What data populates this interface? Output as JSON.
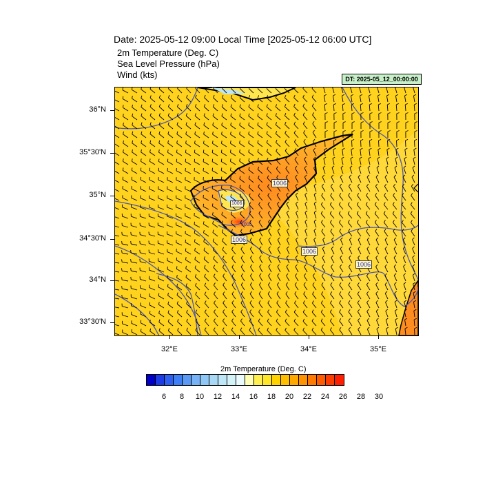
{
  "title": {
    "main": "Date: 2025-05-12  09:00 Local Time [2025-05-12  06:00 UTC]",
    "line1": "2m Temperature (Deg. C)",
    "line2": "Sea Level Pressure   (hPa)",
    "line3": "Wind   (kts)"
  },
  "dt_badge": "DT: 2025-05_12_00:00:00",
  "axes": {
    "lat_labels": [
      "36°N",
      "35°30'N",
      "35°N",
      "34°30'N",
      "34°N",
      "33°30'N"
    ],
    "lon_labels": [
      "32°E",
      "33°E",
      "34°E",
      "35°E"
    ]
  },
  "pressure_labels": [
    "1006",
    "1006",
    "1006",
    "1006",
    "1006",
    "1005"
  ],
  "colorbar": {
    "title": "2m Temperature (Deg. C)",
    "labels": [
      "6",
      "8",
      "10",
      "12",
      "14",
      "16",
      "18",
      "20",
      "22",
      "24",
      "26",
      "28",
      "30"
    ],
    "colors": [
      "#0000c8",
      "#1e3ce6",
      "#2e5ff0",
      "#3f7ff5",
      "#5a9af5",
      "#76b2f5",
      "#8ec6f5",
      "#a8d8f5",
      "#bfe6f7",
      "#d6f2f9",
      "#ebfafc",
      "#ffffb4",
      "#fff050",
      "#ffe628",
      "#ffd200",
      "#ffbe00",
      "#ffa800",
      "#ff9200",
      "#ff7800",
      "#ff5a00",
      "#ff3c00",
      "#ff1e00"
    ]
  },
  "colors": {
    "sea": "#ffd21e",
    "land_warm": "#ffa01e",
    "land_hot": "#ff6414",
    "isobar": "#4a55b0",
    "coast": "#000000"
  }
}
